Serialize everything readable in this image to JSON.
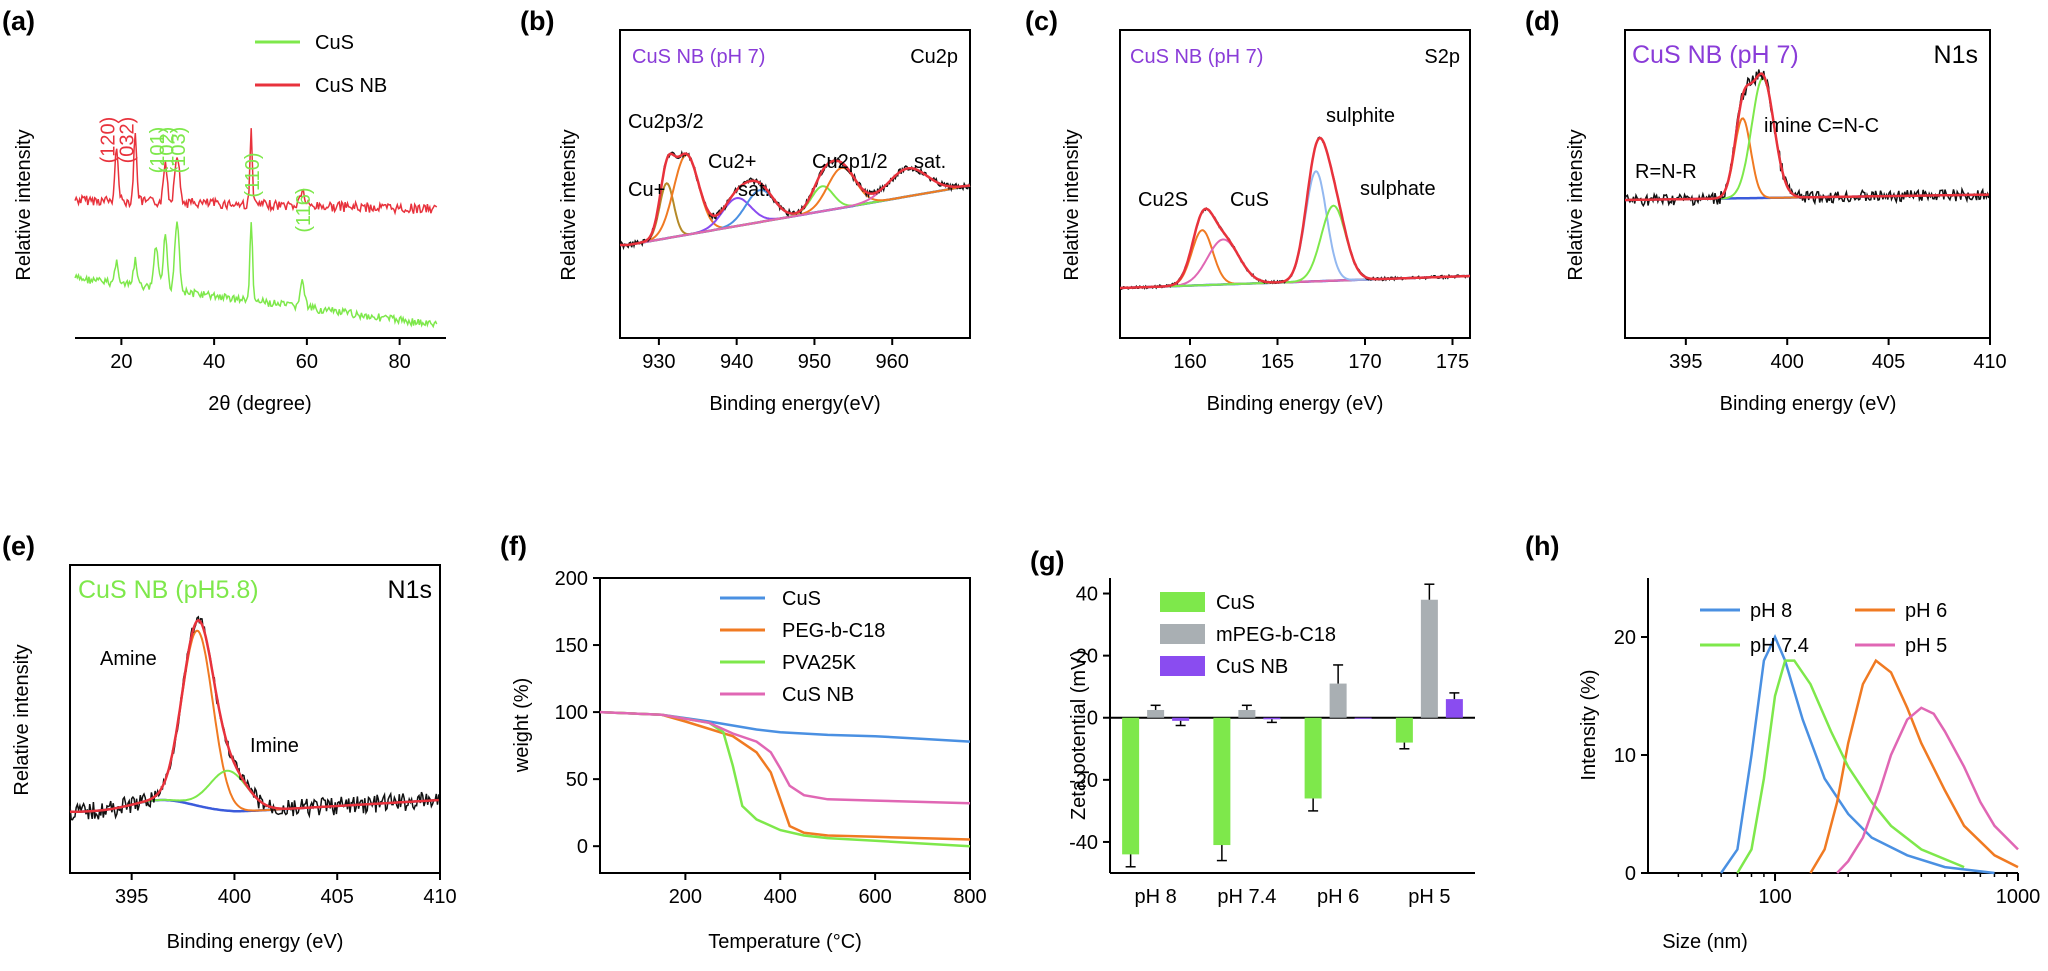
{
  "colors": {
    "green": "#7ee84b",
    "red": "#e8323c",
    "blue": "#3b5bdb",
    "orange": "#f07a22",
    "pink": "#e067b4",
    "purple": "#8a4cf0",
    "gray": "#a9afb3",
    "skyblue": "#4a90e2",
    "violet": "#8a3cd8",
    "black": "#111111"
  },
  "chart_data": [
    {
      "panel": "(a)",
      "type": "line",
      "xlabel": "2θ (degree)",
      "ylabel": "Relative intensity",
      "xlim": [
        10,
        90
      ],
      "xticks": [
        20,
        40,
        60,
        80
      ],
      "legend": [
        "CuS",
        "CuS NB"
      ],
      "peaks_red": [
        {
          "x": 19,
          "label": "(120)"
        },
        {
          "x": 23,
          "label": "(032)"
        }
      ],
      "peaks_green": [
        {
          "x": 27.5,
          "label": "(101)"
        },
        {
          "x": 29.5,
          "label": "(102)"
        },
        {
          "x": 32,
          "label": "(103)"
        },
        {
          "x": 48,
          "label": "(110)"
        },
        {
          "x": 59,
          "label": "(116)"
        }
      ]
    },
    {
      "panel": "(b)",
      "type": "line",
      "title": "CuS NB (pH 7)",
      "element": "Cu2p",
      "xlabel": "Binding energy(eV)",
      "ylabel": "Relative intensity",
      "xlim": [
        925,
        970
      ],
      "xticks": [
        930,
        940,
        950,
        960
      ],
      "annotations": [
        "Cu2p3/2",
        "Cu+",
        "Cu2+",
        "sat.",
        "Cu2p1/2",
        "sat."
      ]
    },
    {
      "panel": "(c)",
      "type": "line",
      "title": "CuS NB (pH 7)",
      "element": "S2p",
      "xlabel": "Binding energy (eV)",
      "ylabel": "Relative intensity",
      "xlim": [
        156,
        176
      ],
      "xticks": [
        160,
        165,
        170,
        175
      ],
      "annotations": [
        "Cu2S",
        "CuS",
        "sulphite",
        "sulphate"
      ]
    },
    {
      "panel": "(d)",
      "type": "line",
      "title": "CuS NB (pH 7)",
      "element": "N1s",
      "xlabel": "Binding energy (eV)",
      "ylabel": "Relative intensity",
      "xlim": [
        392,
        410
      ],
      "xticks": [
        395,
        400,
        405,
        410
      ],
      "annotations": [
        "R=N-R",
        "imine C=N-C"
      ]
    },
    {
      "panel": "(e)",
      "type": "line",
      "title": "CuS NB (pH5.8)",
      "element": "N1s",
      "xlabel": "Binding energy (eV)",
      "ylabel": "Relative intensity",
      "xlim": [
        392,
        410
      ],
      "xticks": [
        395,
        400,
        405,
        410
      ],
      "annotations": [
        "Amine",
        "Imine"
      ]
    },
    {
      "panel": "(f)",
      "type": "line",
      "xlabel": "Temperature (°C)",
      "ylabel": "weight (%)",
      "xlim": [
        20,
        800
      ],
      "ylim": [
        -20,
        200
      ],
      "xticks": [
        200,
        400,
        600,
        800
      ],
      "yticks": [
        0,
        50,
        100,
        150,
        200
      ],
      "series": [
        {
          "name": "CuS",
          "x": [
            20,
            150,
            250,
            350,
            400,
            500,
            600,
            700,
            800
          ],
          "y": [
            100,
            98,
            93,
            87,
            85,
            83,
            82,
            80,
            78
          ]
        },
        {
          "name": "PEG-b-C18",
          "x": [
            20,
            150,
            200,
            300,
            350,
            380,
            400,
            420,
            450,
            500,
            600,
            800
          ],
          "y": [
            100,
            98,
            93,
            82,
            70,
            55,
            35,
            15,
            10,
            8,
            7,
            5
          ]
        },
        {
          "name": "PVA25K",
          "x": [
            20,
            150,
            250,
            280,
            300,
            320,
            350,
            400,
            450,
            500,
            600,
            800
          ],
          "y": [
            100,
            98,
            92,
            85,
            60,
            30,
            20,
            12,
            8,
            6,
            4,
            0
          ]
        },
        {
          "name": "CuS NB",
          "x": [
            20,
            150,
            250,
            300,
            350,
            380,
            400,
            420,
            450,
            500,
            600,
            800
          ],
          "y": [
            100,
            98,
            92,
            84,
            78,
            70,
            58,
            45,
            38,
            35,
            34,
            32
          ]
        }
      ]
    },
    {
      "panel": "(g)",
      "type": "bar",
      "ylabel": "Zeta potential (mV)",
      "ylim": [
        -50,
        45
      ],
      "yticks": [
        -40,
        -20,
        0,
        20,
        40
      ],
      "categories": [
        "pH 8",
        "pH 7.4",
        "pH 6",
        "pH 5"
      ],
      "series": [
        {
          "name": "CuS",
          "values": [
            -44,
            -41,
            -26,
            -8
          ],
          "errors": [
            4,
            5,
            4,
            2
          ]
        },
        {
          "name": "mPEG-b-C18",
          "values": [
            2.5,
            2.5,
            11,
            38
          ],
          "errors": [
            1.5,
            1.5,
            6,
            5
          ]
        },
        {
          "name": "CuS NB",
          "values": [
            -1,
            -0.5,
            0,
            6
          ],
          "errors": [
            1.5,
            1,
            0,
            2
          ]
        }
      ]
    },
    {
      "panel": "(h)",
      "type": "line",
      "xlabel": "Size (nm)",
      "ylabel": "Intensity (%)",
      "xscale": "log",
      "xlim": [
        30,
        1000
      ],
      "ylim": [
        0,
        25
      ],
      "xticks": [
        100,
        1000
      ],
      "yticks": [
        0,
        10,
        20
      ],
      "series": [
        {
          "name": "pH 8",
          "x": [
            60,
            70,
            80,
            90,
            100,
            110,
            130,
            160,
            200,
            250,
            350,
            500,
            800
          ],
          "y": [
            0,
            2,
            10,
            18,
            20,
            18,
            13,
            8,
            5,
            3,
            1.5,
            0.5,
            0
          ]
        },
        {
          "name": "pH 6",
          "x": [
            140,
            160,
            180,
            200,
            230,
            260,
            300,
            350,
            400,
            500,
            600,
            800,
            1000
          ],
          "y": [
            0,
            2,
            6,
            11,
            16,
            18,
            17,
            14,
            11,
            7,
            4,
            1.5,
            0.5
          ]
        },
        {
          "name": "pH 7.4",
          "x": [
            70,
            80,
            90,
            100,
            110,
            120,
            140,
            170,
            200,
            250,
            300,
            400,
            600
          ],
          "y": [
            0,
            2,
            8,
            15,
            18,
            18,
            16,
            12,
            9,
            6,
            4,
            2,
            0.5
          ]
        },
        {
          "name": "pH 5",
          "x": [
            180,
            200,
            230,
            270,
            300,
            350,
            400,
            450,
            500,
            600,
            700,
            800,
            1000
          ],
          "y": [
            0,
            1,
            3,
            7,
            10,
            13,
            14,
            13.5,
            12,
            9,
            6,
            4,
            2
          ]
        }
      ]
    }
  ]
}
